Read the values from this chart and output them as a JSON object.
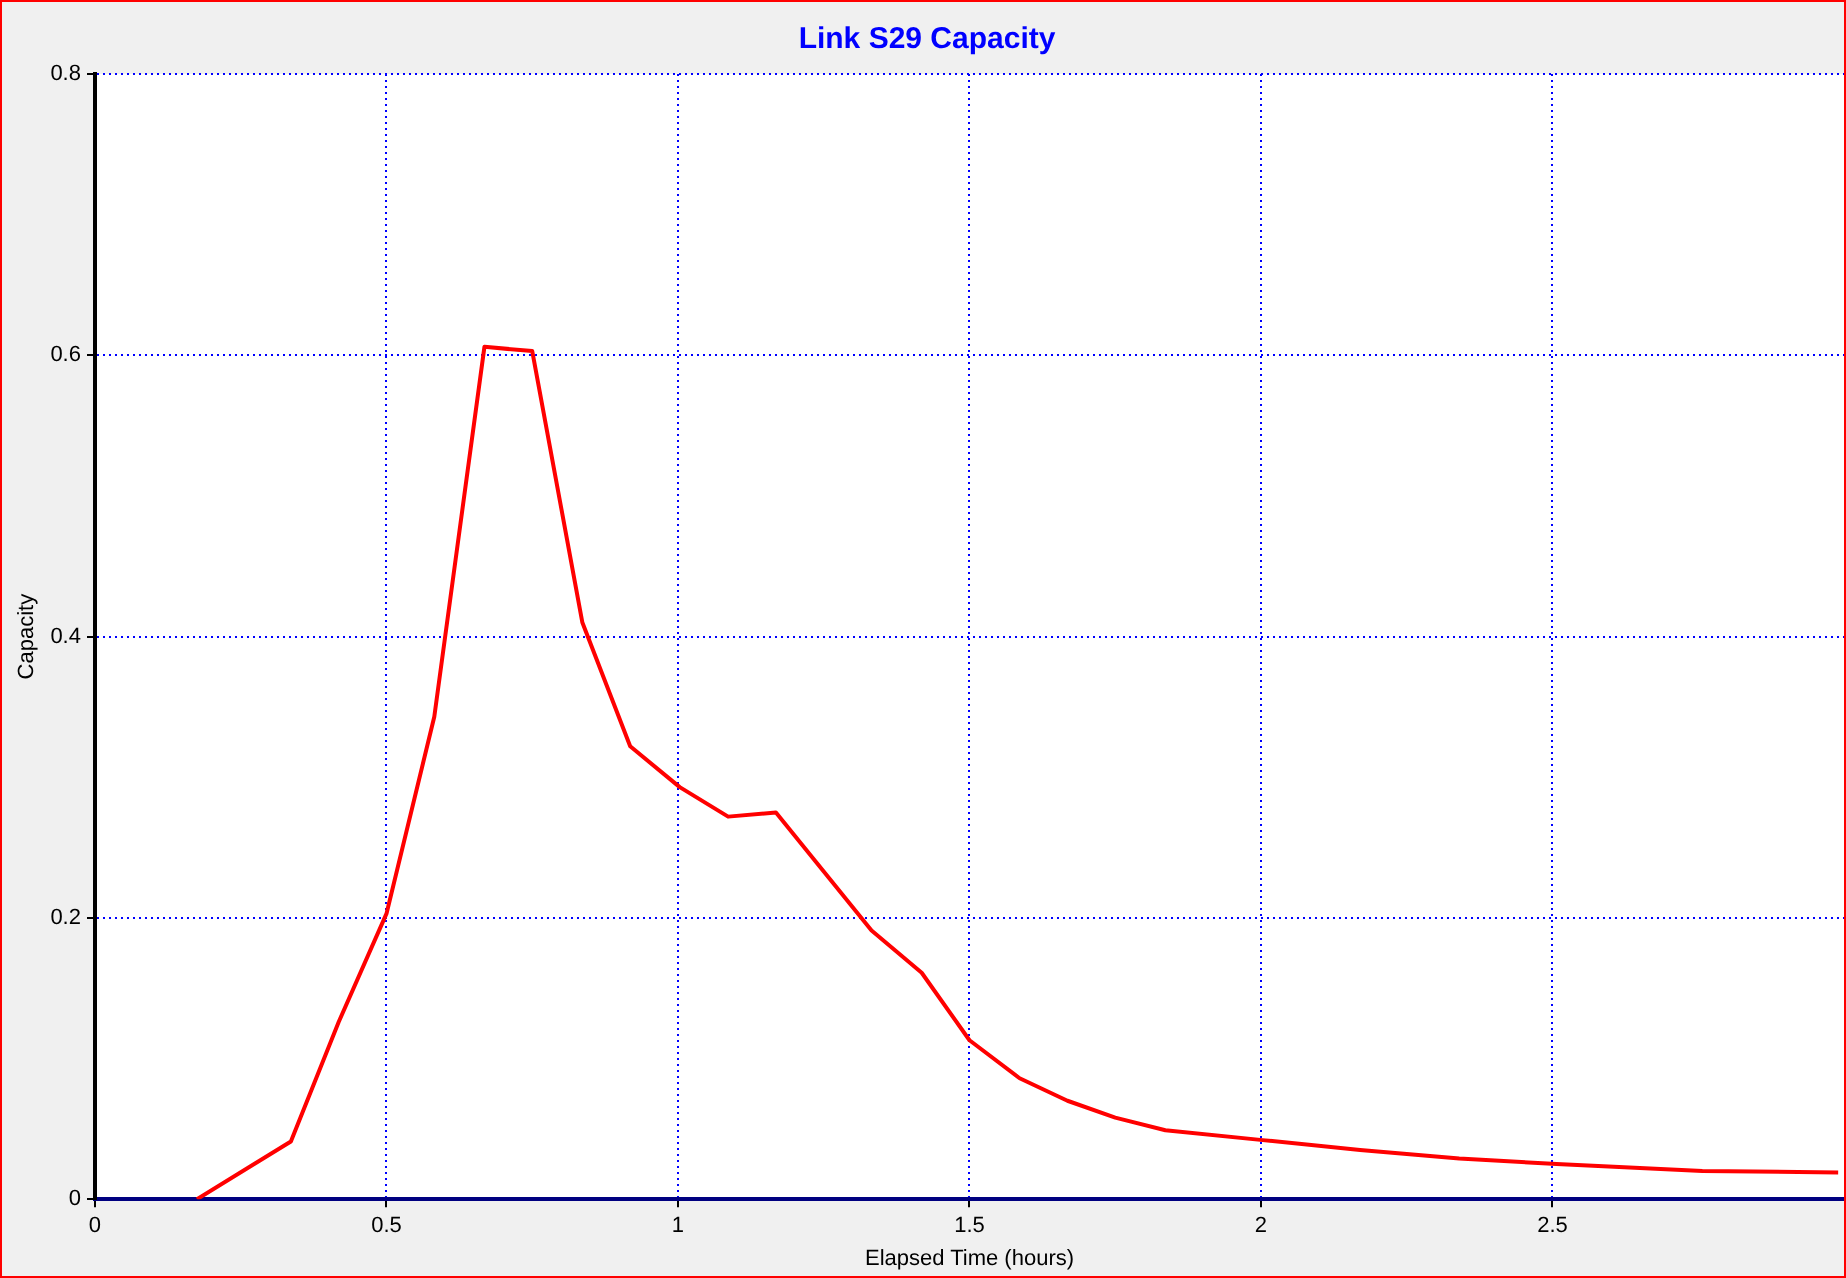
{
  "chart_data": {
    "type": "line",
    "title": "Link S29 Capacity",
    "xlabel": "Elapsed Time (hours)",
    "ylabel": "Capacity",
    "series": [
      {
        "color": "#ff0000",
        "x": [
          0.175,
          0.336,
          0.418,
          0.5,
          0.582,
          0.668,
          0.75,
          0.836,
          0.918,
          1.003,
          1.086,
          1.168,
          1.25,
          1.332,
          1.418,
          1.5,
          1.586,
          1.668,
          1.75,
          1.836,
          2.003,
          2.17,
          2.34,
          2.507,
          2.757,
          2.99
        ],
        "values": [
          0,
          0.041,
          0.126,
          0.203,
          0.343,
          0.606,
          0.603,
          0.41,
          0.322,
          0.293,
          0.272,
          0.275,
          0.233,
          0.191,
          0.161,
          0.113,
          0.086,
          0.07,
          0.058,
          0.049,
          0.042,
          0.035,
          0.029,
          0.025,
          0.02,
          0.019
        ]
      }
    ],
    "xlim": [
      0,
      3
    ],
    "xticks": [
      0,
      0.5,
      1,
      1.5,
      2,
      2.5
    ],
    "ylim": [
      0,
      0.8
    ],
    "yticks": [
      0,
      0.2,
      0.4,
      0.6,
      0.8
    ],
    "grid": true,
    "legend": false,
    "marker": "none",
    "line_style": "solid"
  }
}
